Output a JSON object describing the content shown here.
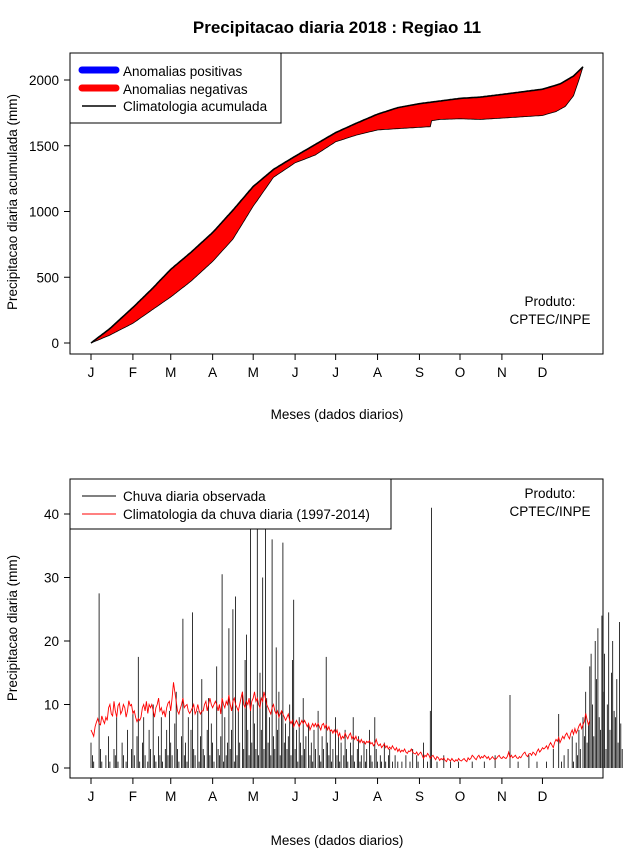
{
  "title": "Precipitacao diaria 2018 : Regiao 11",
  "colors": {
    "negative": "#ff0000",
    "positive": "#0000ff",
    "observed": "#000000",
    "climatology": "#ff0000"
  },
  "chart_data": [
    {
      "type": "area",
      "name": "accumulated",
      "ylabel": "Precipitacao diaria acumulada (mm)",
      "xlabel": "Meses (dados diarios)",
      "xlim": [
        1,
        365
      ],
      "ylim": [
        0,
        2100
      ],
      "yticks": [
        0,
        500,
        1000,
        1500,
        2000
      ],
      "month_labels": [
        "J",
        "F",
        "M",
        "A",
        "M",
        "J",
        "J",
        "A",
        "S",
        "O",
        "N",
        "D"
      ],
      "month_days": [
        1,
        32,
        60,
        91,
        121,
        152,
        182,
        213,
        244,
        274,
        305,
        335
      ],
      "legend": [
        "Anomalias positivas",
        "Anomalias negativas",
        "Climatologia acumulada"
      ],
      "annotation": [
        "Produto:",
        "CPTEC/INPE"
      ],
      "climatology_points": [
        [
          1,
          0
        ],
        [
          15,
          110
        ],
        [
          32,
          270
        ],
        [
          46,
          410
        ],
        [
          60,
          560
        ],
        [
          75,
          690
        ],
        [
          91,
          840
        ],
        [
          106,
          1010
        ],
        [
          121,
          1190
        ],
        [
          136,
          1320
        ],
        [
          152,
          1420
        ],
        [
          167,
          1510
        ],
        [
          182,
          1600
        ],
        [
          197,
          1670
        ],
        [
          213,
          1740
        ],
        [
          228,
          1790
        ],
        [
          244,
          1820
        ],
        [
          259,
          1840
        ],
        [
          274,
          1860
        ],
        [
          289,
          1870
        ],
        [
          305,
          1890
        ],
        [
          320,
          1910
        ],
        [
          335,
          1930
        ],
        [
          348,
          1970
        ],
        [
          358,
          2030
        ],
        [
          365,
          2100
        ]
      ],
      "observed_points": [
        [
          1,
          0
        ],
        [
          15,
          60
        ],
        [
          32,
          150
        ],
        [
          46,
          250
        ],
        [
          60,
          350
        ],
        [
          75,
          470
        ],
        [
          91,
          620
        ],
        [
          106,
          790
        ],
        [
          121,
          1040
        ],
        [
          136,
          1260
        ],
        [
          152,
          1370
        ],
        [
          167,
          1430
        ],
        [
          182,
          1530
        ],
        [
          197,
          1580
        ],
        [
          213,
          1620
        ],
        [
          228,
          1630
        ],
        [
          244,
          1640
        ],
        [
          252,
          1645
        ],
        [
          253,
          1690
        ],
        [
          259,
          1700
        ],
        [
          274,
          1705
        ],
        [
          289,
          1700
        ],
        [
          305,
          1710
        ],
        [
          320,
          1720
        ],
        [
          335,
          1730
        ],
        [
          345,
          1760
        ],
        [
          352,
          1800
        ],
        [
          358,
          1880
        ],
        [
          362,
          2000
        ],
        [
          365,
          2100
        ]
      ]
    },
    {
      "type": "bar",
      "name": "daily",
      "ylabel": "Precipitacao diaria (mm)",
      "xlabel": "Meses (dados diarios)",
      "xlim": [
        1,
        365
      ],
      "ylim": [
        0,
        44
      ],
      "yticks": [
        0,
        10,
        20,
        30,
        40
      ],
      "month_labels": [
        "J",
        "F",
        "M",
        "A",
        "M",
        "J",
        "J",
        "A",
        "S",
        "O",
        "N",
        "D"
      ],
      "month_days": [
        1,
        32,
        60,
        91,
        121,
        152,
        182,
        213,
        244,
        274,
        305,
        335
      ],
      "legend": [
        "Chuva diaria observada",
        "Climatologia da chuva diaria (1997-2014)"
      ],
      "annotation": [
        "Produto:",
        "CPTEC/INPE"
      ],
      "series": [
        {
          "name": "Chuva diaria observada",
          "values": [
            4,
            2,
            1,
            0,
            0,
            0,
            27.5,
            3,
            1,
            0,
            0,
            2,
            0,
            5,
            1,
            0,
            0,
            3,
            2,
            8,
            1,
            0,
            0,
            4,
            2,
            0,
            1,
            6,
            0,
            0,
            3,
            9,
            2,
            0,
            5,
            17.5,
            1,
            0,
            4,
            8,
            2,
            0,
            1,
            6,
            3,
            0,
            10,
            2,
            1,
            0,
            5,
            2,
            8,
            1,
            0,
            3,
            6,
            2,
            9,
            4,
            2,
            0,
            7,
            12,
            3,
            1,
            0,
            5,
            23.5,
            2,
            4,
            1,
            8,
            0,
            6,
            24.5,
            3,
            2,
            0,
            9,
            1,
            5,
            14,
            3,
            2,
            0,
            6,
            11,
            2,
            7,
            4,
            1,
            0,
            16,
            3,
            2,
            5,
            30.5,
            1,
            8,
            2,
            4,
            22,
            3,
            6,
            25,
            1,
            27,
            2,
            9,
            4,
            0,
            12,
            3,
            17,
            21,
            6,
            2,
            38,
            4,
            10,
            7,
            3,
            46,
            2,
            15,
            6,
            30,
            3,
            41,
            11,
            4,
            8,
            2,
            36,
            5,
            3,
            19,
            6,
            12,
            2,
            9,
            35.5,
            4,
            7,
            3,
            5,
            10,
            2,
            17,
            26.5,
            3,
            6,
            1,
            8,
            4,
            2,
            11,
            3,
            5,
            0,
            7,
            2,
            4,
            1,
            6,
            3,
            0,
            9,
            2,
            1,
            5,
            3,
            0,
            17.5,
            4,
            2,
            6,
            1,
            3,
            0,
            8,
            2,
            5,
            1,
            4,
            0,
            2,
            6,
            3,
            1,
            0,
            4,
            2,
            8,
            1,
            0,
            3,
            5,
            1,
            2,
            0,
            4,
            1,
            3,
            0,
            6,
            2,
            1,
            0,
            8,
            3,
            1,
            0,
            2,
            1,
            0,
            4,
            1,
            0,
            2,
            3,
            0,
            1,
            0,
            2,
            0,
            1,
            0,
            0,
            1,
            0,
            0,
            2,
            0,
            0,
            1,
            0,
            3,
            0,
            0,
            2,
            1,
            0,
            0,
            0,
            4,
            0,
            0,
            1,
            0,
            9,
            41,
            0,
            0,
            0,
            1,
            0,
            0,
            0,
            0,
            2,
            0,
            0,
            0,
            0,
            1,
            0,
            0,
            0,
            0,
            0,
            1,
            0,
            0,
            0,
            0,
            0,
            0,
            0,
            0,
            0,
            1,
            0,
            0,
            0,
            0,
            0,
            0,
            0,
            0,
            1,
            0,
            0,
            0,
            0,
            0,
            0,
            0,
            2,
            0,
            0,
            0,
            0,
            0,
            0,
            0,
            0,
            0,
            0,
            11.5,
            0,
            0,
            0,
            0,
            0,
            1,
            0,
            0,
            0,
            0,
            0,
            0,
            0,
            2,
            0,
            0,
            0,
            0,
            0,
            1,
            0,
            0,
            0,
            0,
            0,
            0,
            1,
            0,
            0,
            0,
            0,
            3,
            0,
            0,
            0,
            8.5,
            0,
            1,
            0,
            2,
            0,
            0,
            3,
            0,
            0,
            5,
            1,
            0,
            4,
            2,
            6,
            3,
            0,
            8,
            5,
            12,
            4,
            7,
            16,
            18,
            10,
            5,
            20,
            14,
            22,
            8,
            6,
            24,
            12,
            18,
            3,
            10,
            24.5,
            6,
            15,
            20,
            9,
            8,
            14,
            4,
            23,
            7,
            3
          ]
        },
        {
          "name": "Climatologia da chuva diaria (1997-2014)",
          "values": [
            6,
            5.5,
            5,
            6.5,
            7.2,
            7.8,
            7,
            6.8,
            8.2,
            7.5,
            7,
            8,
            7.5,
            9.5,
            10,
            8.5,
            8.2,
            10.5,
            9,
            8,
            9.8,
            10.2,
            8.5,
            9,
            10,
            9.5,
            8,
            9,
            10.6,
            9.8,
            10,
            8.6,
            9,
            8,
            7.3,
            7.8,
            7.5,
            8,
            9.5,
            10,
            9,
            10.5,
            8.6,
            10,
            9.5,
            10,
            9,
            8,
            9.5,
            10,
            11,
            9,
            9.5,
            8.5,
            9,
            8,
            9.5,
            10.2,
            10.5,
            9,
            11,
            13.5,
            12,
            10.5,
            9,
            8.5,
            9.3,
            10,
            11,
            9.5,
            9.8,
            10,
            9,
            8.6,
            9,
            9.5,
            10,
            8.5,
            9,
            10,
            9,
            8.5,
            9,
            9,
            10,
            10.5,
            9,
            10,
            11,
            10,
            9.5,
            10,
            10.5,
            10,
            9,
            10,
            8.5,
            11,
            10,
            9.5,
            10.5,
            10,
            11.5,
            10,
            9,
            10.5,
            11,
            10,
            9.5,
            9,
            10,
            11,
            12,
            10,
            9.5,
            10.5,
            10,
            11,
            9,
            10.5,
            11,
            12,
            10.5,
            11,
            10,
            9.5,
            11,
            10.5,
            12,
            11,
            10,
            9.5,
            9,
            8.5,
            9.5,
            10,
            9,
            8.5,
            9,
            8,
            8.5,
            9,
            8.5,
            8,
            7.5,
            8,
            8.5,
            7.5,
            7,
            7.5,
            6.5,
            7,
            7.5,
            7,
            6.5,
            7,
            7.5,
            7,
            7.5,
            7,
            6.5,
            7,
            6,
            6.5,
            7,
            6.5,
            7,
            6.5,
            7,
            6.5,
            6,
            6.8,
            7,
            6.3,
            6.8,
            6,
            6.5,
            5.8,
            6,
            5.5,
            6,
            5.5,
            6,
            5,
            5.5,
            4.5,
            5,
            4.7,
            5.5,
            5,
            4.6,
            5.2,
            5.5,
            4.6,
            5,
            4.5,
            5,
            4.3,
            4.5,
            4,
            4.5,
            4,
            4.2,
            3.8,
            4.2,
            4,
            4.3,
            3.8,
            4,
            3.5,
            3.8,
            4.5,
            3.8,
            3.5,
            3.8,
            3.2,
            3.5,
            3.8,
            3.2,
            3.5,
            3,
            3.3,
            3,
            3.5,
            3.1,
            2.8,
            3.2,
            2.6,
            3,
            2.5,
            2.8,
            2.6,
            3,
            2.5,
            2.3,
            2.7,
            2.6,
            3,
            2.5,
            2.3,
            2.2,
            2.5,
            2,
            2.3,
            2.5,
            2,
            1.5,
            2,
            1.8,
            2.3,
            2,
            1.5,
            1.8,
            2,
            1.6,
            1.3,
            1.8,
            1.6,
            1.2,
            1.5,
            1.3,
            1.6,
            1.2,
            1,
            1.5,
            1.3,
            1.1,
            1.5,
            1.2,
            1,
            1.3,
            1.1,
            1.5,
            1.2,
            1.1,
            1.3,
            1.5,
            1.2,
            1,
            1.6,
            1.3,
            1.5,
            2,
            1.8,
            1.5,
            1.3,
            1.8,
            2,
            1.5,
            1.8,
            1.6,
            2,
            1.8,
            1.5,
            1.8,
            1.3,
            1.5,
            1.8,
            1.5,
            1.3,
            1.5,
            1.8,
            2,
            1.6,
            1.5,
            1.8,
            1.6,
            1.5,
            1.8,
            2.5,
            1.6,
            2,
            1.6,
            1.8,
            2,
            1.6,
            1.5,
            1.8,
            1.6,
            2,
            2.3,
            2.5,
            2,
            1.8,
            2.2,
            2.3,
            2,
            2.5,
            2.3,
            2,
            2.6,
            3,
            2.5,
            2.8,
            3.2,
            3,
            3.2,
            3.5,
            3,
            3.6,
            4,
            3.6,
            3.2,
            4,
            4.5,
            4.2,
            4.8,
            4,
            4.5,
            5,
            4.6,
            5.2,
            5.5,
            5,
            4.6,
            5.5,
            6,
            5.3,
            6.2,
            5.5,
            6,
            6.6,
            7,
            6.2,
            6.8,
            7.3,
            8.6,
            7.6,
            6.8,
            7.5
          ]
        }
      ]
    }
  ]
}
